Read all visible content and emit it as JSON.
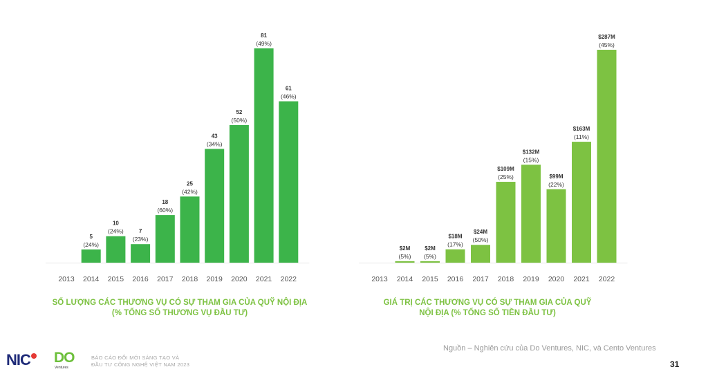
{
  "chart_data": [
    {
      "type": "bar",
      "title": "SỐ LƯỢNG CÁC THƯƠNG VỤ CÓ SỰ THAM GIA CỦA QUỸ NỘI ĐỊA (% TỔNG SỐ THƯƠNG VỤ ĐẦU TƯ)",
      "title_lines": [
        "SỐ LƯỢNG CÁC THƯƠNG VỤ CÓ SỰ THAM GIA CỦA QUỸ NỘI ĐỊA",
        "(% TỔNG SỐ THƯƠNG VỤ ĐẦU TƯ)"
      ],
      "categories": [
        "2013",
        "2014",
        "2015",
        "2016",
        "2017",
        "2018",
        "2019",
        "2020",
        "2021",
        "2022"
      ],
      "values": [
        0,
        5,
        10,
        7,
        18,
        25,
        43,
        52,
        81,
        61
      ],
      "value_labels": [
        "",
        "5",
        "10",
        "7",
        "18",
        "25",
        "43",
        "52",
        "81",
        "61"
      ],
      "pct_labels": [
        "",
        "(24%)",
        "(24%)",
        "(23%)",
        "(60%)",
        "(42%)",
        "(34%)",
        "(50%)",
        "(49%)",
        "(46%)"
      ],
      "ylim": [
        0,
        81
      ],
      "grid": false,
      "color": "#3cb44a"
    },
    {
      "type": "bar",
      "title": "GIÁ TRỊ CÁC THƯƠNG VỤ CÓ SỰ THAM GIA CỦA QUỸ NỘI ĐỊA (% TỔNG SỐ TIỀN ĐẦU TƯ)",
      "title_lines": [
        "GIÁ TRỊ CÁC THƯƠNG VỤ CÓ SỰ THAM GIA CỦA QUỸ",
        "NỘI ĐỊA (% TỔNG SỐ TIỀN ĐẦU TƯ)"
      ],
      "categories": [
        "2013",
        "2014",
        "2015",
        "2016",
        "2017",
        "2018",
        "2019",
        "2020",
        "2021",
        "2022"
      ],
      "values": [
        0,
        2,
        2,
        18,
        24,
        109,
        132,
        99,
        163,
        287
      ],
      "value_labels": [
        "",
        "$2M",
        "$2M",
        "$18M",
        "$24M",
        "$109M",
        "$132M",
        "$99M",
        "$163M",
        "$287M"
      ],
      "pct_labels": [
        "",
        "(5%)",
        "(5%)",
        "(17%)",
        "(50%)",
        "(25%)",
        "(15%)",
        "(22%)",
        "(11%)",
        "(45%)"
      ],
      "ylim": [
        0,
        287
      ],
      "grid": false,
      "color": "#7dc242"
    }
  ],
  "footer": {
    "source": "Nguồn – Nghiên cứu của Do Ventures, NIC, và Cento Ventures",
    "page_number": "31",
    "report_line1": "BÁO CÁO ĐỔI MỚI SÁNG TẠO VÀ",
    "report_line2": "ĐẦU TƯ CÔNG NGHỆ VIỆT NAM 2023",
    "logo_nic": "NIC",
    "logo_do": "DO",
    "logo_do_sub": "Ventures"
  }
}
